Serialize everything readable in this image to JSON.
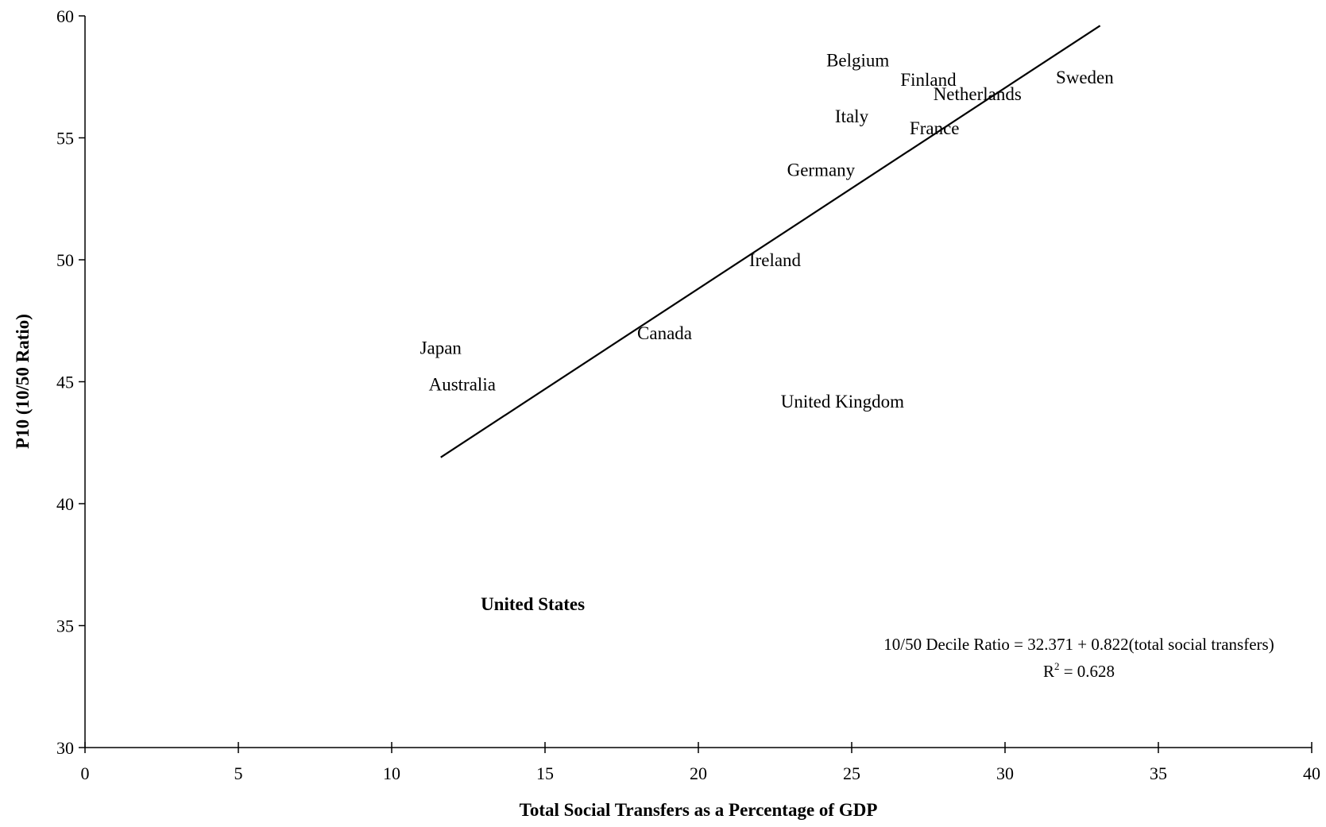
{
  "chart_data": {
    "type": "scatter",
    "title": "",
    "xlabel": "Total Social Transfers as a Percentage of GDP",
    "ylabel": "P10 (10/50 Ratio)",
    "xlim": [
      0,
      40
    ],
    "ylim": [
      30,
      60
    ],
    "x_ticks": [
      0,
      5,
      10,
      15,
      20,
      25,
      30,
      35,
      40
    ],
    "y_ticks": [
      30,
      35,
      40,
      45,
      50,
      55,
      60
    ],
    "grid": false,
    "legend": "none",
    "points": [
      {
        "label": "Belgium",
        "x": 25.2,
        "y": 58.2
      },
      {
        "label": "Finland",
        "x": 27.5,
        "y": 57.4
      },
      {
        "label": "Netherlands",
        "x": 29.1,
        "y": 56.8
      },
      {
        "label": "Sweden",
        "x": 32.6,
        "y": 57.5
      },
      {
        "label": "Italy",
        "x": 25.0,
        "y": 55.9
      },
      {
        "label": "France",
        "x": 27.7,
        "y": 55.4
      },
      {
        "label": "Germany",
        "x": 24.0,
        "y": 53.7
      },
      {
        "label": "Ireland",
        "x": 22.5,
        "y": 50.0
      },
      {
        "label": "Canada",
        "x": 18.9,
        "y": 47.0
      },
      {
        "label": "Japan",
        "x": 11.6,
        "y": 46.4
      },
      {
        "label": "Australia",
        "x": 12.3,
        "y": 44.9
      },
      {
        "label": "United Kingdom",
        "x": 24.7,
        "y": 44.2
      },
      {
        "label": "United States",
        "x": 14.6,
        "y": 35.9,
        "bold": true
      }
    ],
    "trendline": {
      "x": [
        11.6,
        33.1
      ],
      "y": [
        41.9,
        59.6
      ]
    },
    "annotation": {
      "equation": "10/50 Decile Ratio = 32.371 + 0.822(total social transfers)",
      "r_prefix": "R",
      "r_sup": "2",
      "r_suffix": " = 0.628"
    }
  }
}
